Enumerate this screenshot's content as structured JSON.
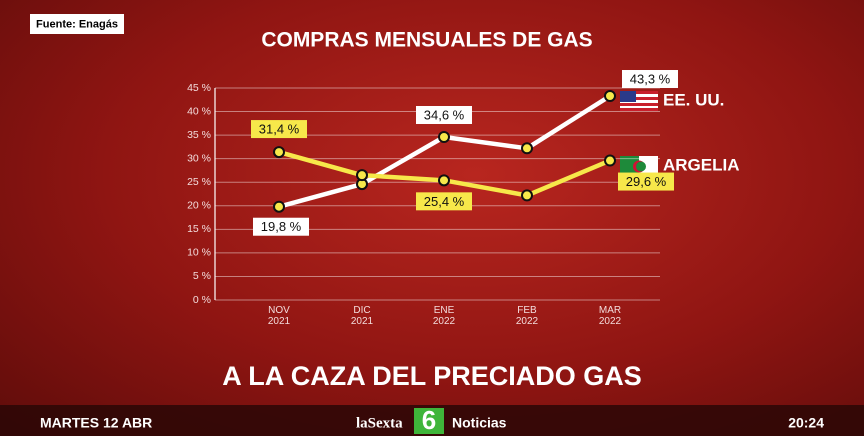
{
  "chart_data": {
    "type": "line",
    "title": "COMPRAS MENSUALES DE GAS",
    "source": "Fuente: Enagás",
    "categories": [
      "NOV 2021",
      "DIC 2021",
      "ENE 2022",
      "FEB 2022",
      "MAR 2022"
    ],
    "series": [
      {
        "name": "EE. UU.",
        "color": "#ffffff",
        "values": [
          19.8,
          24.6,
          34.6,
          32.2,
          43.3
        ],
        "value_labels": [
          "19,8 %",
          null,
          "34,6 %",
          null,
          "43,3 %"
        ]
      },
      {
        "name": "ARGELIA",
        "color": "#f7e84a",
        "values": [
          31.4,
          26.5,
          25.4,
          22.2,
          29.6
        ],
        "value_labels": [
          "31,4 %",
          null,
          "25,4 %",
          null,
          "29,6 %"
        ]
      }
    ],
    "ylim": [
      0,
      45
    ],
    "yticks": [
      {
        "value": 0,
        "label": "0 %"
      },
      {
        "value": 5,
        "label": "5 %"
      },
      {
        "value": 10,
        "label": "10 %"
      },
      {
        "value": 15,
        "label": "15 %"
      },
      {
        "value": 20,
        "label": "20 %"
      },
      {
        "value": 25,
        "label": "25 %"
      },
      {
        "value": 30,
        "label": "30 %"
      },
      {
        "value": 35,
        "label": "35 %"
      },
      {
        "value": 40,
        "label": "40 %"
      },
      {
        "value": 45,
        "label": "45 %"
      }
    ],
    "grid": true
  },
  "broadcast": {
    "headline": "A LA CAZA DEL PRECIADO GAS",
    "date": "MARTES 12 ABR",
    "channel": "laSexta",
    "channel_number": "6",
    "program": "Noticias",
    "time": "20:24"
  }
}
